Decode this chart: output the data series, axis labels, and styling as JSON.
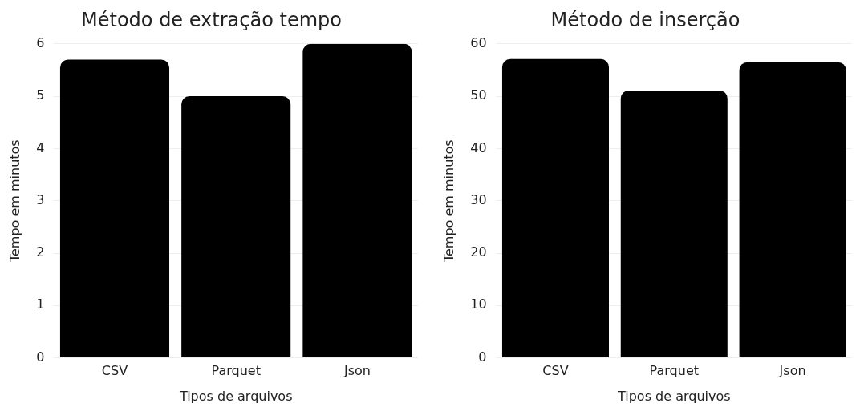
{
  "chart_data": [
    {
      "type": "bar",
      "title": "Método de extração tempo",
      "xlabel": "Tipos de arquivos",
      "ylabel": "Tempo em minutos",
      "categories": [
        "CSV",
        "Parquet",
        "Json"
      ],
      "values": [
        5.7,
        5.0,
        6.0
      ],
      "color": "#000000",
      "ylim": [
        0,
        6
      ],
      "yticks": [
        0,
        1,
        2,
        3,
        4,
        5,
        6
      ],
      "grid": "y"
    },
    {
      "type": "bar",
      "title": "Método de inserção",
      "xlabel": "Tipos de arquivos",
      "ylabel": "Tempo em minutos",
      "categories": [
        "CSV",
        "Parquet",
        "Json"
      ],
      "values": [
        57.1,
        51.1,
        56.5
      ],
      "color": "#000000",
      "ylim": [
        0,
        60
      ],
      "yticks": [
        0,
        10,
        20,
        30,
        40,
        50,
        60
      ],
      "grid": "y"
    }
  ]
}
